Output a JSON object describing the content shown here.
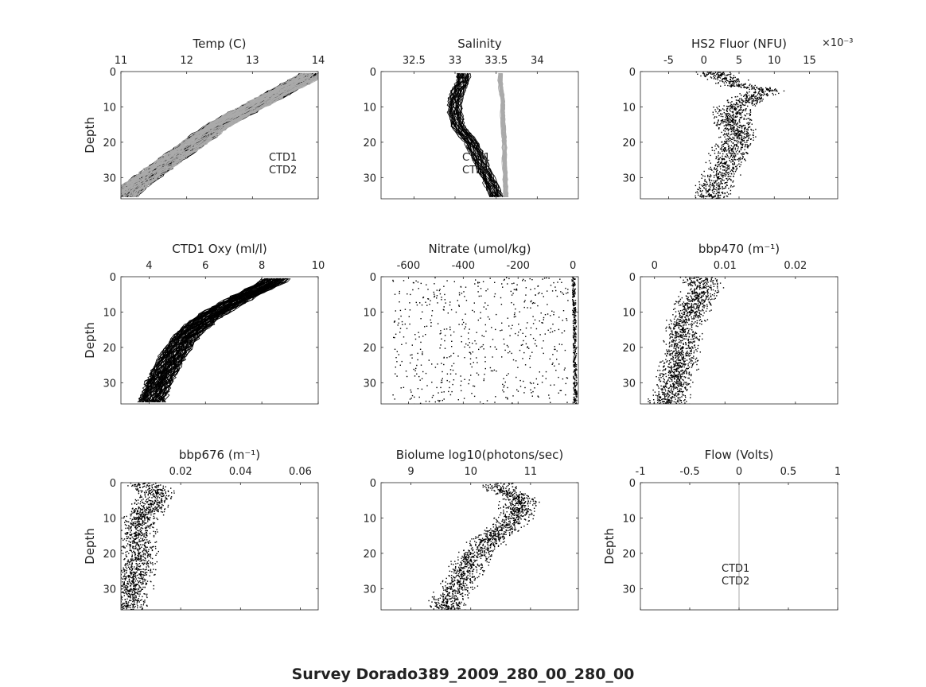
{
  "figure": {
    "title": "Survey Dorado389_2009_280_00_280_00",
    "ylabel": "Depth"
  },
  "chart_data": [
    {
      "id": "temp",
      "type": "line",
      "title": "Temp (C)",
      "xlim": [
        11,
        14
      ],
      "xticks": [
        11,
        12,
        13,
        14
      ],
      "xticklabels": [
        "11",
        "12",
        "13",
        "14"
      ],
      "ylim": [
        0,
        36
      ],
      "yticks": [
        0,
        10,
        20,
        30
      ],
      "yticklabels": [
        "0",
        "10",
        "20",
        "30"
      ],
      "y_reversed": true,
      "show_ylabel": true,
      "legend": [
        "CTD1",
        "CTD2"
      ],
      "legend_position": "lower-right",
      "series": [
        {
          "name": "CTD1",
          "color": "#000000",
          "x": [
            13.9,
            13.7,
            13.4,
            13.1,
            12.8,
            12.5,
            12.2,
            11.9,
            11.6,
            11.3,
            11.05
          ],
          "y": [
            1,
            3,
            6,
            9,
            12,
            15,
            19,
            23,
            27,
            31,
            35
          ]
        },
        {
          "name": "CTD2",
          "color": "#aaaaaa",
          "x": [
            13.9,
            13.7,
            13.4,
            13.1,
            12.8,
            12.5,
            12.2,
            11.9,
            11.6,
            11.3,
            11.05
          ],
          "y": [
            1,
            3,
            6,
            9,
            12,
            15,
            19,
            23,
            27,
            31,
            35
          ]
        }
      ]
    },
    {
      "id": "salinity",
      "type": "line",
      "title": "Salinity",
      "xlim": [
        32.1,
        34.5
      ],
      "xticks": [
        32.5,
        33,
        33.5,
        34
      ],
      "xticklabels": [
        "32.5",
        "33",
        "33.5",
        "34"
      ],
      "ylim": [
        0,
        36
      ],
      "yticks": [
        0,
        10,
        20,
        30
      ],
      "yticklabels": [
        "0",
        "10",
        "20",
        "30"
      ],
      "y_reversed": true,
      "show_ylabel": false,
      "legend": [
        "CTD1",
        "CTD2"
      ],
      "legend_position": "lower-center",
      "series": [
        {
          "name": "CTD1",
          "color": "#000000",
          "x": [
            33.1,
            33.1,
            33.05,
            33.0,
            33.0,
            33.05,
            33.2,
            33.3,
            33.5
          ],
          "y": [
            1,
            3,
            5,
            8,
            12,
            16,
            20,
            25,
            35
          ]
        },
        {
          "name": "CTD2",
          "color": "#aaaaaa",
          "x": [
            33.55,
            33.55,
            33.56,
            33.58,
            33.58,
            33.59,
            33.6,
            33.6,
            33.62
          ],
          "y": [
            1,
            3,
            5,
            8,
            12,
            16,
            20,
            25,
            35
          ]
        }
      ]
    },
    {
      "id": "hs2fluor",
      "type": "scatter",
      "title": "HS2 Fluor (NFU)",
      "exponent": "×10⁻³",
      "xlim": [
        -9,
        19
      ],
      "xticks": [
        -5,
        0,
        5,
        10,
        15
      ],
      "xticklabels": [
        "-5",
        "0",
        "5",
        "10",
        "15"
      ],
      "ylim": [
        0,
        36
      ],
      "yticks": [
        0,
        10,
        20,
        30
      ],
      "yticklabels": [
        "0",
        "10",
        "20",
        "30"
      ],
      "y_reversed": true,
      "show_ylabel": false,
      "series": [
        {
          "name": "",
          "color": "#000000",
          "x": [
            1,
            3,
            5,
            9,
            4,
            4,
            5,
            4,
            3,
            2,
            1
          ],
          "y": [
            0,
            2,
            4,
            5,
            10,
            14,
            18,
            22,
            26,
            30,
            35
          ]
        }
      ]
    },
    {
      "id": "oxy",
      "type": "line",
      "title": "CTD1 Oxy (ml/l)",
      "xlim": [
        3,
        10
      ],
      "xticks": [
        4,
        6,
        8,
        10
      ],
      "xticklabels": [
        "4",
        "6",
        "8",
        "10"
      ],
      "ylim": [
        0,
        36
      ],
      "yticks": [
        0,
        10,
        20,
        30
      ],
      "yticklabels": [
        "0",
        "10",
        "20",
        "30"
      ],
      "y_reversed": true,
      "show_ylabel": true,
      "series": [
        {
          "name": "",
          "color": "#000000",
          "x": [
            8.5,
            8.0,
            7.5,
            6.8,
            6.0,
            5.3,
            4.8,
            4.4,
            4.1
          ],
          "y": [
            1,
            3,
            5,
            8,
            12,
            17,
            23,
            29,
            35
          ]
        }
      ]
    },
    {
      "id": "nitrate",
      "type": "scatter",
      "title": "Nitrate (umol/kg)",
      "xlim": [
        -700,
        20
      ],
      "xticks": [
        -600,
        -400,
        -200,
        0
      ],
      "xticklabels": [
        "-600",
        "-400",
        "-200",
        "0"
      ],
      "ylim": [
        0,
        36
      ],
      "yticks": [
        0,
        10,
        20,
        30
      ],
      "yticklabels": [
        "0",
        "10",
        "20",
        "30"
      ],
      "y_reversed": true,
      "show_ylabel": false,
      "series": [
        {
          "name": "",
          "color": "#000000",
          "x": [
            0,
            2,
            3,
            5,
            5,
            6,
            7
          ],
          "y": [
            0,
            5,
            10,
            15,
            20,
            25,
            35
          ]
        }
      ]
    },
    {
      "id": "bbp470",
      "type": "scatter",
      "title": "bbp470 (m⁻¹)",
      "xlim": [
        -0.002,
        0.026
      ],
      "xticks": [
        0,
        0.01,
        0.02
      ],
      "xticklabels": [
        "0",
        "0.01",
        "0.02"
      ],
      "ylim": [
        0,
        36
      ],
      "yticks": [
        0,
        10,
        20,
        30
      ],
      "yticklabels": [
        "0",
        "10",
        "20",
        "30"
      ],
      "y_reversed": true,
      "show_ylabel": false,
      "series": [
        {
          "name": "",
          "color": "#000000",
          "x": [
            0.006,
            0.007,
            0.006,
            0.005,
            0.004,
            0.004,
            0.003,
            0.002
          ],
          "y": [
            0,
            3,
            6,
            10,
            15,
            20,
            28,
            35
          ]
        }
      ]
    },
    {
      "id": "bbp676",
      "type": "scatter",
      "title": "bbp676 (m⁻¹)",
      "xlim": [
        0,
        0.066
      ],
      "xticks": [
        0.02,
        0.04,
        0.06
      ],
      "xticklabels": [
        "0.02",
        "0.04",
        "0.06"
      ],
      "ylim": [
        0,
        36
      ],
      "yticks": [
        0,
        10,
        20,
        30
      ],
      "yticklabels": [
        "0",
        "10",
        "20",
        "30"
      ],
      "y_reversed": true,
      "show_ylabel": true,
      "series": [
        {
          "name": "",
          "color": "#000000",
          "x": [
            0.008,
            0.012,
            0.01,
            0.006,
            0.005,
            0.006,
            0.004,
            0.002
          ],
          "y": [
            0,
            3,
            6,
            10,
            15,
            20,
            28,
            35
          ]
        }
      ]
    },
    {
      "id": "biolume",
      "type": "scatter",
      "title": "Biolume log10(photons/sec)",
      "xlim": [
        8.5,
        11.8
      ],
      "xticks": [
        9,
        10,
        11
      ],
      "xticklabels": [
        "9",
        "10",
        "11"
      ],
      "ylim": [
        0,
        36
      ],
      "yticks": [
        0,
        10,
        20,
        30
      ],
      "yticklabels": [
        "0",
        "10",
        "20",
        "30"
      ],
      "y_reversed": true,
      "show_ylabel": false,
      "series": [
        {
          "name": "",
          "color": "#000000",
          "x": [
            10.5,
            10.8,
            10.8,
            10.6,
            10.3,
            10.0,
            9.8,
            9.6
          ],
          "y": [
            2,
            4,
            8,
            12,
            16,
            22,
            28,
            34
          ]
        }
      ]
    },
    {
      "id": "flow",
      "type": "line",
      "title": "Flow (Volts)",
      "xlim": [
        -1,
        1
      ],
      "xticks": [
        -1,
        -0.5,
        0,
        0.5,
        1
      ],
      "xticklabels": [
        "-1",
        "-0.5",
        "0",
        "0.5",
        "1"
      ],
      "ylim": [
        0,
        36
      ],
      "yticks": [
        0,
        10,
        20,
        30
      ],
      "yticklabels": [
        "0",
        "10",
        "20",
        "30"
      ],
      "y_reversed": true,
      "show_ylabel": true,
      "legend": [
        "CTD1",
        "CTD2"
      ],
      "legend_position": "lower-center",
      "series": [
        {
          "name": "CTD1",
          "color": "#000000",
          "x": [
            0,
            0
          ],
          "y": [
            0,
            36
          ]
        },
        {
          "name": "CTD2",
          "color": "#aaaaaa",
          "x": [
            0,
            0
          ],
          "y": [
            0,
            36
          ]
        }
      ]
    }
  ]
}
